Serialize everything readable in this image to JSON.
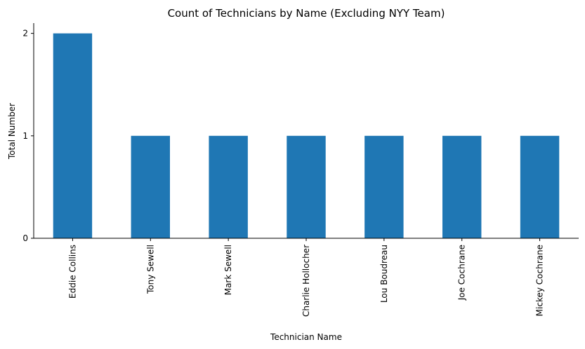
{
  "chart_data": {
    "type": "bar",
    "title": "Count of Technicians by Name (Excluding NYY Team)",
    "xlabel": "Technician Name",
    "ylabel": "Total Number",
    "categories": [
      "Eddie Collins",
      "Tony Sewell",
      "Mark Sewell",
      "Charlie Hollocher",
      "Lou Boudreau",
      "Joe Cochrane",
      "Mickey Cochrane"
    ],
    "values": [
      2,
      1,
      1,
      1,
      1,
      1,
      1
    ],
    "yticks": [
      0,
      1,
      2
    ],
    "ylim": [
      0,
      2.1
    ],
    "grid": false,
    "legend": "none",
    "bar_color": "#1f77b4"
  }
}
